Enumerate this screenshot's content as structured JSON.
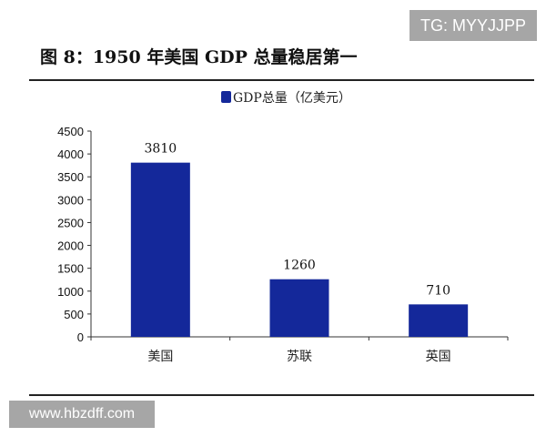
{
  "watermarks": {
    "top": "TG: MYYJJPP",
    "bottom": "www.hbzdff.com"
  },
  "chart_data": {
    "type": "bar",
    "title": "图 8：1950 年美国 GDP 总量稳居第一",
    "categories": [
      "美国",
      "苏联",
      "英国"
    ],
    "series": [
      {
        "name": "GDP总量（亿美元）",
        "values": [
          3810,
          1260,
          710
        ],
        "color": "#14289a"
      }
    ],
    "ylim": [
      0,
      4500
    ],
    "yticks": [
      0,
      500,
      1000,
      1500,
      2000,
      2500,
      3000,
      3500,
      4000,
      4500
    ],
    "grid": false,
    "legend": "top-center",
    "data_labels": true
  }
}
